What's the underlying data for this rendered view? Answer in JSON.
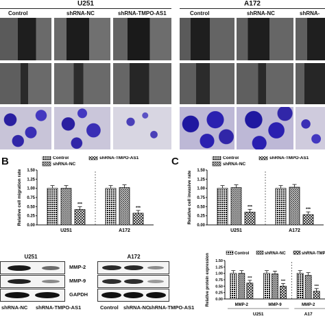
{
  "top": {
    "group_left": "U251",
    "group_right": "A172",
    "col_headers_left": [
      "Control",
      "shRNA-NC",
      "shRNA-TMPO-AS1"
    ],
    "col_headers_right": [
      "Control",
      "shRNA-NC",
      "shRNA-"
    ]
  },
  "panel_letters": {
    "b": "B",
    "c": "C"
  },
  "chart_data": [
    {
      "type": "bar",
      "id": "B",
      "ylabel": "Relative cell migration rate",
      "ylim": [
        0,
        1.5
      ],
      "yticks": [
        "0.00",
        "0.25",
        "0.50",
        "0.75",
        "1.00",
        "1.25",
        "1.50"
      ],
      "groups": [
        "U251",
        "A172"
      ],
      "series": [
        {
          "name": "Control",
          "values": [
            1.0,
            1.0
          ]
        },
        {
          "name": "shRNA-NC",
          "values": [
            1.0,
            1.02
          ]
        },
        {
          "name": "shRNA-TMPO-AS1",
          "values": [
            0.42,
            0.32
          ]
        }
      ],
      "annotation": "***"
    },
    {
      "type": "bar",
      "id": "C",
      "ylabel": "Relative cell invasive rate",
      "ylim": [
        0,
        1.5
      ],
      "yticks": [
        "0.00",
        "0.25",
        "0.50",
        "0.75",
        "1.00",
        "1.25",
        "1.50"
      ],
      "groups": [
        "U251",
        "A172"
      ],
      "series": [
        {
          "name": "Control",
          "values": [
            1.0,
            1.0
          ]
        },
        {
          "name": "shRNA-NC",
          "values": [
            1.02,
            1.03
          ]
        },
        {
          "name": "shRNA-TMPO-AS1",
          "values": [
            0.35,
            0.28
          ]
        }
      ],
      "annotation": "***"
    },
    {
      "type": "bar",
      "id": "E",
      "ylabel": "Relative protein expression",
      "ylim": [
        0,
        1.5
      ],
      "yticks": [
        "0.00",
        "0.25",
        "0.50",
        "0.75",
        "1.00",
        "1.25",
        "1.50"
      ],
      "legend": [
        "Control",
        "shRNA-NC",
        "shRNA-TMP"
      ],
      "categories": [
        "MMP-2",
        "MMP-9",
        "MMP-2"
      ],
      "groups": [
        "U251",
        "A17"
      ],
      "series": [
        {
          "name": "Control",
          "values": [
            1.0,
            1.0,
            1.0
          ]
        },
        {
          "name": "shRNA-NC",
          "values": [
            1.0,
            0.98,
            0.92
          ]
        },
        {
          "name": "shRNA-TMPO-AS1",
          "values": [
            0.62,
            0.5,
            0.3
          ]
        }
      ],
      "annotation": "***"
    }
  ],
  "western": {
    "left_title": "U251",
    "right_title": "A172",
    "rows": [
      "MMP-2",
      "MMP-9",
      "GAPDH"
    ],
    "lanes_left": [
      "shRNA-NC",
      "shRNA-TMPO-AS1"
    ],
    "lanes_right": [
      "Control",
      "shRNA-NC",
      "shRNA-TMPO-AS1"
    ]
  },
  "colors": {
    "bar_outline": "#111111",
    "scratch_gray": "#3a3a3a",
    "stain_purple": "#3a2fa8"
  }
}
